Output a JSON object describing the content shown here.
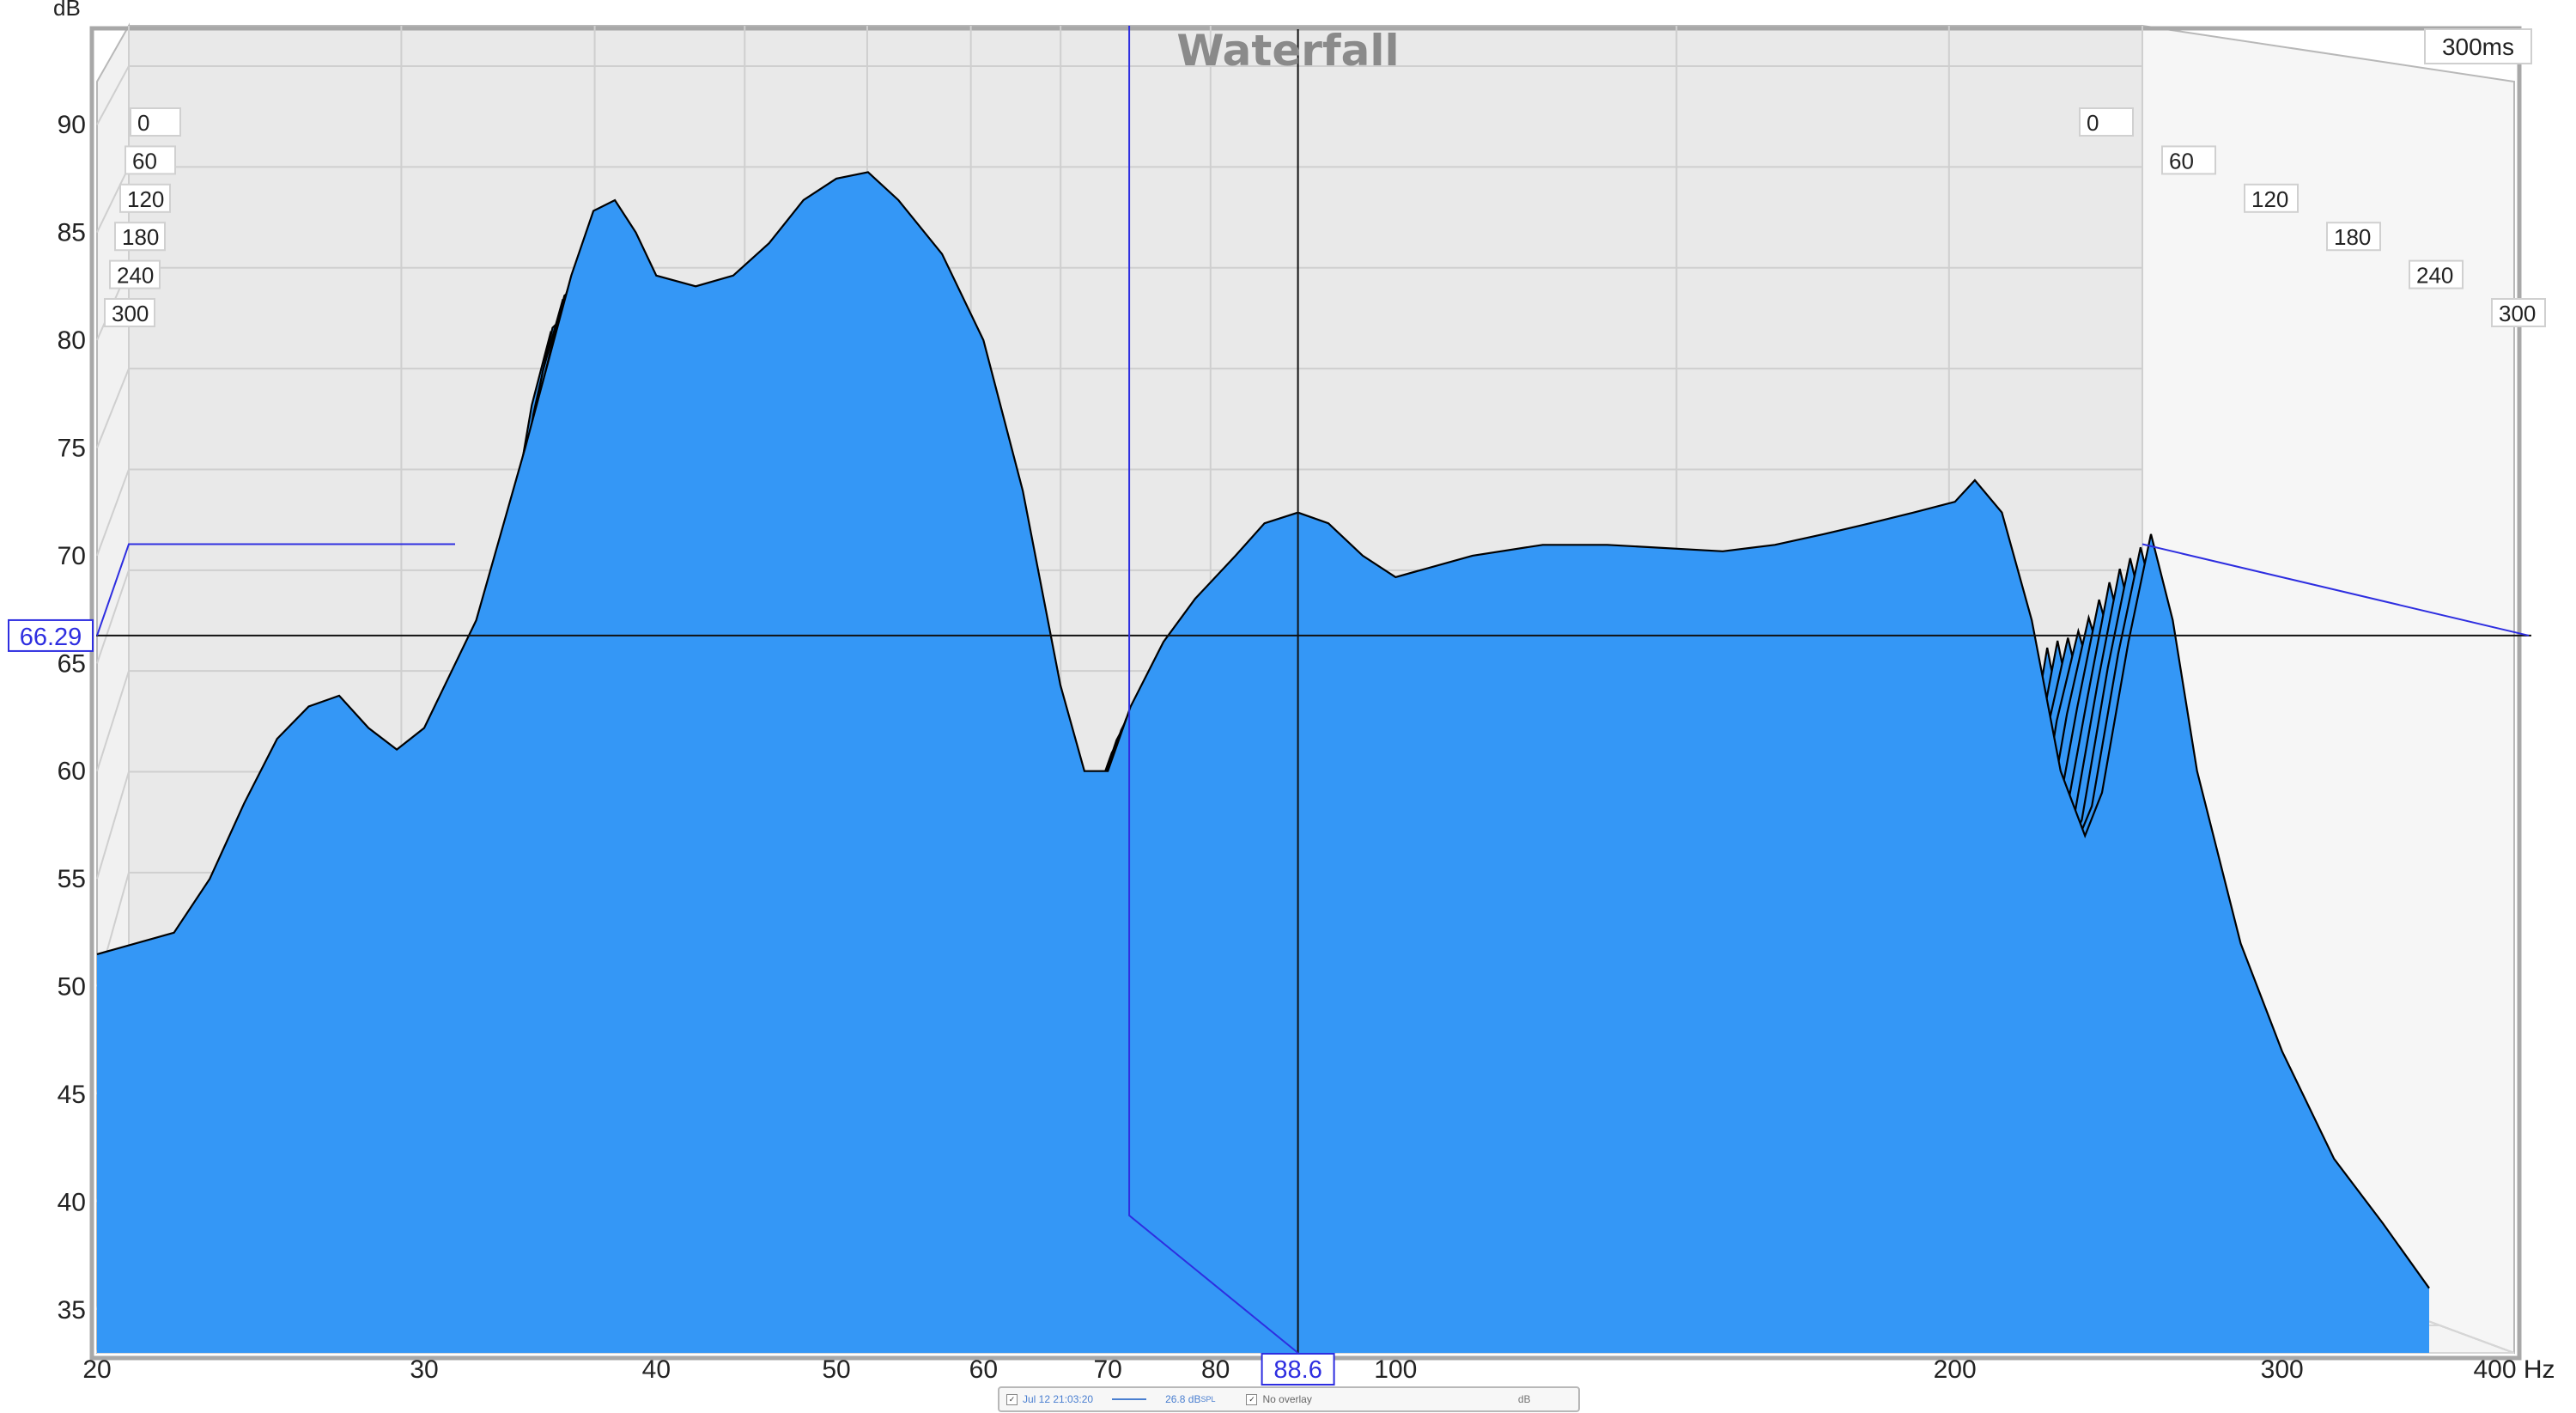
{
  "chart_data": {
    "type": "waterfall",
    "title": "Waterfall",
    "ylabel": "dB",
    "xunit": "Hz",
    "time_span_label": "300ms",
    "xscale": "log",
    "xlim": [
      20,
      400
    ],
    "ylim": [
      33,
      92
    ],
    "x_ticks": [
      20,
      30,
      40,
      50,
      60,
      70,
      80,
      100,
      200,
      300,
      400
    ],
    "x_tick_labels": [
      "20",
      "30",
      "40",
      "50",
      "60",
      "70",
      "80",
      "100",
      "200",
      "300",
      "400 Hz"
    ],
    "y_ticks": [
      35,
      40,
      45,
      50,
      55,
      60,
      65,
      70,
      75,
      80,
      85,
      90
    ],
    "time_ticks_ms": [
      0,
      60,
      120,
      180,
      240,
      300
    ],
    "time_tick_labels": [
      "0",
      "60",
      "120",
      "180",
      "240",
      "300"
    ],
    "cursor": {
      "x_label": "88.6",
      "y_label": "66.29"
    },
    "slice_count": 31,
    "grid": true,
    "fill_color": "#3497f6",
    "line_color": "#000000",
    "front_slice": {
      "t_ms": 0,
      "points": [
        [
          20,
          51.5
        ],
        [
          22,
          52.5
        ],
        [
          23,
          55
        ],
        [
          24,
          58.5
        ],
        [
          25,
          61.5
        ],
        [
          26,
          63
        ],
        [
          27,
          63.5
        ],
        [
          28,
          62
        ],
        [
          29,
          61
        ],
        [
          30,
          62
        ],
        [
          32,
          67
        ],
        [
          34,
          75
        ],
        [
          36,
          83
        ],
        [
          37,
          86
        ],
        [
          38,
          86.5
        ],
        [
          39,
          85
        ],
        [
          40,
          83
        ],
        [
          42,
          82.5
        ],
        [
          44,
          83
        ],
        [
          46,
          84.5
        ],
        [
          48,
          86.5
        ],
        [
          50,
          87.5
        ],
        [
          52,
          87.8
        ],
        [
          54,
          86.5
        ],
        [
          57,
          84
        ],
        [
          60,
          80
        ],
        [
          63,
          73
        ],
        [
          66,
          64
        ],
        [
          68,
          60
        ],
        [
          70,
          60
        ],
        [
          72,
          63
        ],
        [
          75,
          66
        ],
        [
          78,
          68
        ],
        [
          82,
          70
        ],
        [
          85,
          71.5
        ],
        [
          88.6,
          72
        ],
        [
          92,
          71.5
        ],
        [
          96,
          70
        ],
        [
          100,
          69
        ],
        [
          110,
          70
        ],
        [
          120,
          70.5
        ],
        [
          130,
          70.5
        ],
        [
          150,
          70.2
        ],
        [
          160,
          70.5
        ],
        [
          170,
          71
        ],
        [
          180,
          71.5
        ],
        [
          190,
          72
        ],
        [
          200,
          72.5
        ],
        [
          205,
          73.5
        ],
        [
          212,
          72
        ],
        [
          220,
          67
        ],
        [
          228,
          60
        ],
        [
          235,
          57
        ],
        [
          240,
          59
        ],
        [
          248,
          66
        ],
        [
          255,
          71
        ],
        [
          262,
          67
        ],
        [
          270,
          60
        ],
        [
          285,
          52
        ],
        [
          300,
          47
        ],
        [
          320,
          42
        ],
        [
          340,
          39
        ],
        [
          360,
          36
        ]
      ]
    }
  },
  "legend": {
    "date": "Jul 12 21:03:20",
    "level": "26.8 dB",
    "level_suffix": "SPL",
    "overlay": "No overlay",
    "units": "dB"
  }
}
